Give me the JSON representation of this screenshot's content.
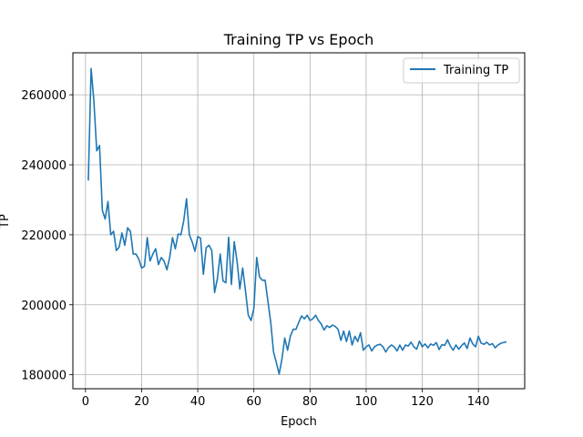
{
  "chart_data": {
    "type": "line",
    "title": "Training TP vs Epoch",
    "xlabel": "Epoch",
    "ylabel": "TP",
    "xlim": [
      -4.5,
      156.5
    ],
    "ylim": [
      176000,
      272000
    ],
    "xticks": [
      0,
      20,
      40,
      60,
      80,
      100,
      120,
      140
    ],
    "xtick_labels": [
      "0",
      "20",
      "40",
      "60",
      "80",
      "100",
      "120",
      "140"
    ],
    "yticks": [
      180000,
      200000,
      220000,
      240000,
      260000
    ],
    "ytick_labels": [
      "180000",
      "200000",
      "220000",
      "240000",
      "260000"
    ],
    "grid": true,
    "legend": {
      "placement": "top-right",
      "entries": [
        "Training TP"
      ]
    },
    "series": [
      {
        "name": "Training TP",
        "color": "#1f77b4",
        "x": [
          1,
          2,
          3,
          4,
          5,
          6,
          7,
          8,
          9,
          10,
          11,
          12,
          13,
          14,
          15,
          16,
          17,
          18,
          19,
          20,
          21,
          22,
          23,
          24,
          25,
          26,
          27,
          28,
          29,
          30,
          31,
          32,
          33,
          34,
          35,
          36,
          37,
          38,
          39,
          40,
          41,
          42,
          43,
          44,
          45,
          46,
          47,
          48,
          49,
          50,
          51,
          52,
          53,
          54,
          55,
          56,
          57,
          58,
          59,
          60,
          61,
          62,
          63,
          64,
          65,
          66,
          67,
          68,
          69,
          70,
          71,
          72,
          73,
          74,
          75,
          76,
          77,
          78,
          79,
          80,
          81,
          82,
          83,
          84,
          85,
          86,
          87,
          88,
          89,
          90,
          91,
          92,
          93,
          94,
          95,
          96,
          97,
          98,
          99,
          100,
          101,
          102,
          103,
          104,
          105,
          106,
          107,
          108,
          109,
          110,
          111,
          112,
          113,
          114,
          115,
          116,
          117,
          118,
          119,
          120,
          121,
          122,
          123,
          124,
          125,
          126,
          127,
          128,
          129,
          130,
          131,
          132,
          133,
          134,
          135,
          136,
          137,
          138,
          139,
          140,
          141,
          142,
          143,
          144,
          145,
          146,
          147,
          148,
          149,
          150
        ],
        "y": [
          235500,
          267500,
          258000,
          244000,
          245500,
          227000,
          224500,
          229500,
          220000,
          221000,
          215500,
          216500,
          220500,
          217000,
          222000,
          221000,
          214500,
          214500,
          213000,
          210500,
          211000,
          219200,
          212500,
          214500,
          216000,
          211500,
          213500,
          212500,
          210000,
          213500,
          219200,
          216000,
          220200,
          220000,
          224000,
          230300,
          220000,
          218000,
          215300,
          219500,
          219000,
          208700,
          216300,
          217000,
          215500,
          203500,
          207500,
          214500,
          206800,
          206300,
          219300,
          205800,
          218000,
          212500,
          204500,
          210500,
          204000,
          197000,
          195500,
          199000,
          213500,
          208000,
          207000,
          207000,
          201000,
          195000,
          186500,
          183500,
          180200,
          184500,
          190500,
          187000,
          191000,
          193000,
          193000,
          195000,
          196800,
          196000,
          197000,
          195500,
          196000,
          197000,
          195500,
          194500,
          192800,
          194000,
          193500,
          194200,
          193800,
          193000,
          189800,
          192500,
          189500,
          192500,
          188500,
          191000,
          189500,
          192000,
          187000,
          188000,
          188500,
          186800,
          188000,
          188500,
          188700,
          188000,
          186500,
          187800,
          188500,
          188000,
          186800,
          188500,
          187000,
          188500,
          188200,
          189300,
          188000,
          187300,
          189600,
          188000,
          188800,
          187700,
          188800,
          188400,
          189200,
          187200,
          188600,
          188400,
          190000,
          188200,
          187000,
          188500,
          187300,
          188300,
          189100,
          187500,
          190500,
          188800,
          188000,
          191000,
          189000,
          188700,
          189300,
          188500,
          188900,
          187700,
          188500,
          189000,
          189200,
          189400
        ]
      }
    ]
  }
}
